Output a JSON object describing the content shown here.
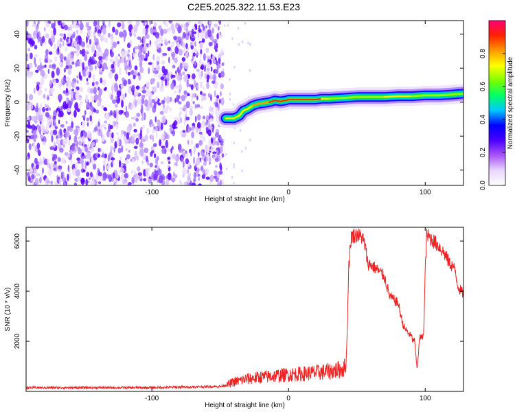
{
  "title": "C2E5.2025.322.11.53.E23",
  "chart_data": [
    {
      "type": "heatmap",
      "xlabel": "Height of straight line (km)",
      "ylabel": "Frequency (Hz)",
      "xlim": [
        -192,
        128
      ],
      "ylim": [
        -49,
        48
      ],
      "xticks": [
        -100,
        0,
        100
      ],
      "yticks": [
        -40,
        -20,
        0,
        20,
        40
      ],
      "colorbar": {
        "label": "Normalized spectral amplitude",
        "range": [
          0.0,
          1.0
        ],
        "ticks": [
          0.0,
          0.2,
          0.4,
          0.6,
          0.8
        ],
        "colormap": [
          "#ffffff",
          "#e9d5ff",
          "#a855f7",
          "#4c00ff",
          "#0000ff",
          "#00c8ff",
          "#00ff66",
          "#7cff00",
          "#ffff00",
          "#ff9900",
          "#ff2200",
          "#ff0077"
        ]
      },
      "noise_region": {
        "x_range": [
          -192,
          -48
        ],
        "description_level": "scattered low-amplitude purple speckle"
      },
      "signal_trace": {
        "x": [
          -46,
          -40,
          -36,
          -33,
          -30,
          -26,
          -22,
          -18,
          -14,
          -10,
          -6,
          -2,
          0,
          4,
          8,
          12,
          16,
          20,
          24,
          30,
          40,
          50,
          60,
          70,
          80,
          90,
          100,
          110,
          120,
          128
        ],
        "y": [
          -9.5,
          -9.5,
          -8,
          -5,
          -4,
          -2,
          -1,
          -0.5,
          0,
          1,
          0.5,
          1,
          1.5,
          1.5,
          1.5,
          1.5,
          1.5,
          1.5,
          2,
          2,
          2.5,
          3,
          3,
          3,
          3.5,
          3.5,
          4,
          4,
          4.5,
          5
        ],
        "peak_amplitude": [
          0.62,
          0.7,
          0.72,
          0.75,
          0.78,
          0.82,
          0.85,
          0.88,
          0.9,
          0.92,
          0.93,
          0.9,
          0.95,
          0.96,
          0.97,
          0.98,
          0.98,
          0.97,
          0.9,
          0.7,
          0.6,
          0.6,
          0.62,
          0.65,
          0.7,
          0.72,
          0.55,
          0.5,
          0.48,
          0.5
        ]
      }
    },
    {
      "type": "line",
      "xlabel": "Height of straight line (km)",
      "ylabel": "SNR (10 * v/v)",
      "xlim": [
        -192,
        128
      ],
      "ylim": [
        0,
        6550
      ],
      "xticks": [
        -100,
        0,
        100
      ],
      "yticks": [
        2000,
        4000,
        6000
      ],
      "series": [
        {
          "color": "#ee2222",
          "x": [
            -192,
            -100,
            -50,
            -45,
            -40,
            -30,
            -20,
            -10,
            0,
            10,
            20,
            30,
            40,
            42,
            43,
            44,
            46,
            50,
            54,
            56,
            58,
            60,
            64,
            66,
            70,
            74,
            76,
            78,
            80,
            84,
            88,
            90,
            91,
            92,
            94,
            96,
            98,
            99,
            100,
            101,
            102,
            104,
            106,
            110,
            114,
            118,
            120,
            122,
            124,
            126,
            128
          ],
          "y": [
            150,
            150,
            200,
            260,
            380,
            500,
            570,
            620,
            670,
            700,
            750,
            800,
            900,
            1000,
            2500,
            5000,
            6200,
            6250,
            6150,
            5800,
            5100,
            5050,
            4900,
            4800,
            4600,
            3800,
            3700,
            3600,
            3550,
            2600,
            2300,
            2200,
            2000,
            2100,
            900,
            2150,
            2150,
            2500,
            4800,
            6200,
            6200,
            6100,
            6000,
            5800,
            5500,
            5100,
            5000,
            4800,
            4200,
            4000,
            3900
          ]
        }
      ]
    }
  ]
}
